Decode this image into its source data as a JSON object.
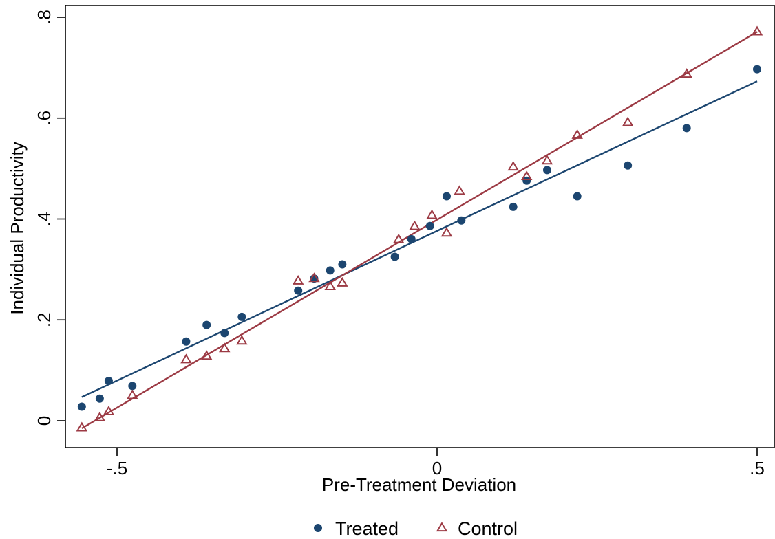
{
  "chart_data": {
    "type": "scatter",
    "title": "",
    "xlabel": "Pre-Treatment Deviation",
    "ylabel": "Individual Productivity",
    "xlim": [
      -0.58,
      0.52
    ],
    "ylim": [
      -0.05,
      0.82
    ],
    "x_ticks": [
      -0.5,
      0,
      0.5
    ],
    "x_tick_labels": [
      "-.5",
      "0",
      ".5"
    ],
    "y_ticks": [
      0,
      0.2,
      0.4,
      0.6,
      0.8
    ],
    "y_tick_labels": [
      "0",
      ".2",
      ".4",
      ".6",
      ".8"
    ],
    "grid": false,
    "legend_position": "bottom",
    "series": [
      {
        "name": "Treated",
        "marker": "circle",
        "color": "#1c4670",
        "points": [
          [
            -0.555,
            0.028
          ],
          [
            -0.527,
            0.044
          ],
          [
            -0.513,
            0.079
          ],
          [
            -0.476,
            0.069
          ],
          [
            -0.392,
            0.157
          ],
          [
            -0.36,
            0.19
          ],
          [
            -0.332,
            0.174
          ],
          [
            -0.305,
            0.206
          ],
          [
            -0.217,
            0.258
          ],
          [
            -0.192,
            0.282
          ],
          [
            -0.167,
            0.298
          ],
          [
            -0.148,
            0.31
          ],
          [
            -0.066,
            0.325
          ],
          [
            -0.04,
            0.36
          ],
          [
            -0.011,
            0.386
          ],
          [
            0.015,
            0.445
          ],
          [
            0.038,
            0.397
          ],
          [
            0.119,
            0.424
          ],
          [
            0.14,
            0.476
          ],
          [
            0.172,
            0.497
          ],
          [
            0.219,
            0.445
          ],
          [
            0.298,
            0.506
          ],
          [
            0.39,
            0.58
          ],
          [
            0.5,
            0.697
          ]
        ],
        "fit": {
          "x1": -0.555,
          "y1": 0.047,
          "x2": 0.5,
          "y2": 0.673
        }
      },
      {
        "name": "Control",
        "marker": "triangle",
        "color": "#9c3a44",
        "points": [
          [
            -0.555,
            -0.014
          ],
          [
            -0.527,
            0.006
          ],
          [
            -0.513,
            0.018
          ],
          [
            -0.476,
            0.05
          ],
          [
            -0.392,
            0.121
          ],
          [
            -0.36,
            0.128
          ],
          [
            -0.332,
            0.143
          ],
          [
            -0.305,
            0.158
          ],
          [
            -0.217,
            0.277
          ],
          [
            -0.192,
            0.282
          ],
          [
            -0.167,
            0.266
          ],
          [
            -0.148,
            0.273
          ],
          [
            -0.06,
            0.359
          ],
          [
            -0.035,
            0.385
          ],
          [
            -0.008,
            0.407
          ],
          [
            0.015,
            0.372
          ],
          [
            0.035,
            0.455
          ],
          [
            0.119,
            0.503
          ],
          [
            0.14,
            0.484
          ],
          [
            0.172,
            0.515
          ],
          [
            0.219,
            0.566
          ],
          [
            0.298,
            0.591
          ],
          [
            0.39,
            0.687
          ],
          [
            0.5,
            0.771
          ]
        ],
        "fit": {
          "x1": -0.555,
          "y1": -0.015,
          "x2": 0.5,
          "y2": 0.771
        }
      }
    ]
  }
}
